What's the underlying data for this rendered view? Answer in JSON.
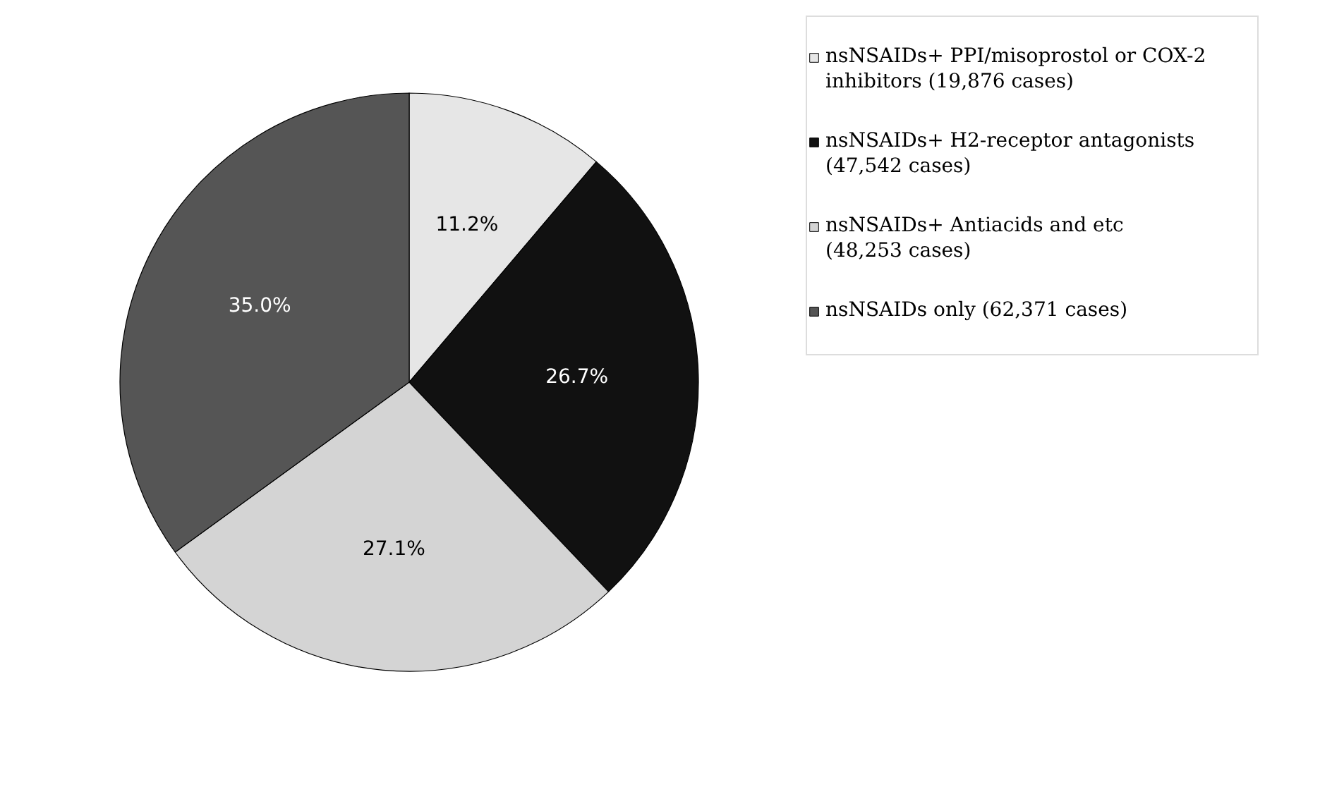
{
  "chart_data": {
    "type": "pie",
    "categories": [
      "nsNSAIDs+ PPI/misoprostol or COX-2 inhibitors (19,876 cases)",
      "nsNSAIDs+ H2-receptor antagonists (47,542 cases)",
      "nsNSAIDs+ Antiacids and etc (48,253 cases)",
      "nsNSAIDs only (62,371 cases)"
    ],
    "values": [
      11.2,
      26.7,
      27.1,
      35.0
    ],
    "value_labels": [
      "11.2%",
      "26.7%",
      "27.1%",
      "35.0%"
    ],
    "colors": [
      "#e6e6e6",
      "#111111",
      "#d4d4d4",
      "#555555"
    ],
    "legend": "right"
  }
}
